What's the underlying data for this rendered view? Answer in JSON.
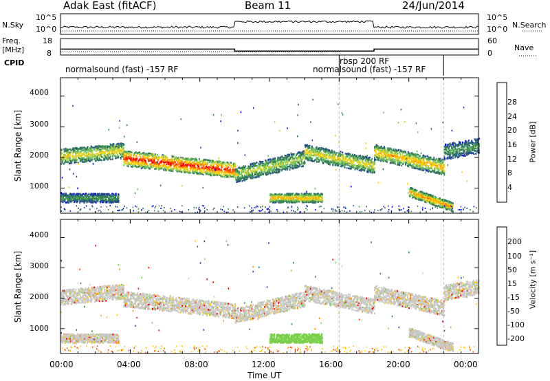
{
  "header": {
    "station": "Adak East (fitACF)",
    "beam": "Beam 11",
    "date": "24/Jun/2014"
  },
  "side_labels": {
    "nsky": "N.Sky",
    "nsearch": "N.Search",
    "freq_line1": "Freq.",
    "freq_line2": "[MHz]",
    "nave": "Nave",
    "cpid": "CPID"
  },
  "cpid_labels": {
    "first": "normalsound (fast) -157 RF",
    "rbsp": "rbsp 200 RF",
    "second": "normalsound (fast) -157 RF"
  },
  "noise_axis": {
    "left_ticks": [
      "10^5",
      "10^0"
    ],
    "right_ticks": [
      "10^5",
      "10^0"
    ]
  },
  "freq_axis": {
    "left_ticks": [
      "18",
      "8"
    ],
    "right_ticks": [
      "60",
      "0"
    ]
  },
  "x_axis": {
    "label": "Time UT",
    "ticks": [
      "00:00",
      "04:00",
      "08:00",
      "12:00",
      "16:00",
      "20:00",
      "00:00"
    ]
  },
  "power_panel": {
    "ylabel": "Slant Range [km]",
    "yticks": [
      "4000",
      "3000",
      "2000",
      "1000"
    ],
    "colorbar_label": "Power [dB]",
    "colorbar_ticks": [
      "28",
      "24",
      "20",
      "16",
      "12",
      "8",
      "4"
    ],
    "colors": [
      "#0000ff",
      "#1e3fa0",
      "#2f6e6e",
      "#3a8a4a",
      "#6cc060",
      "#d2d232",
      "#ffd000",
      "#ff9a00",
      "#ff5a00",
      "#ff0000"
    ]
  },
  "velocity_panel": {
    "ylabel": "Slant Range [km]",
    "yticks": [
      "4000",
      "3000",
      "2000",
      "1000"
    ],
    "colorbar_label": "Velocity [m s⁻¹]",
    "colorbar_ticks": [
      "200",
      "100",
      "50",
      "15",
      "-15",
      "-50",
      "-100",
      "-200"
    ],
    "colors": [
      "#1c3fa8",
      "#2f6f6f",
      "#2f8f3f",
      "#7ad04a",
      "#c8c8c8",
      "#ffc800",
      "#ff9000",
      "#ff4a00",
      "#ff0000"
    ]
  },
  "chart_data": {
    "type": "heatmap",
    "x_range_hours": [
      0,
      24
    ],
    "y_range_km": [
      180,
      4600
    ],
    "frequency_mhz": [
      {
        "start": 0.0,
        "end": 10.0,
        "value": 11.6
      },
      {
        "start": 10.0,
        "end": 18.0,
        "value": 10.4
      },
      {
        "start": 18.0,
        "end": 24.0,
        "value": 11.6
      }
    ],
    "nave": [
      {
        "start": 0.0,
        "end": 16.0,
        "value": 12
      },
      {
        "start": 16.0,
        "end": 18.0,
        "value": 14
      },
      {
        "start": 18.0,
        "end": 24.0,
        "value": 22
      }
    ],
    "power_range_db": [
      0,
      30
    ],
    "velocity_range_ms": [
      -250,
      250
    ],
    "echo_bands": [
      {
        "t0": 0.0,
        "t1": 3.6,
        "r0": 2050,
        "r1": 2250,
        "power": 16
      },
      {
        "t0": 3.6,
        "t1": 10.0,
        "r0": 2000,
        "r1": 1600,
        "power": 24
      },
      {
        "t0": 10.0,
        "t1": 14.0,
        "r0": 1450,
        "r1": 2000,
        "power": 14
      },
      {
        "t0": 14.0,
        "t1": 18.0,
        "r0": 2200,
        "r1": 1750,
        "power": 16
      },
      {
        "t0": 18.0,
        "t1": 22.0,
        "r0": 2200,
        "r1": 1700,
        "power": 18
      },
      {
        "t0": 22.0,
        "t1": 24.0,
        "r0": 2200,
        "r1": 2400,
        "power": 10
      },
      {
        "t0": 0.0,
        "t1": 3.3,
        "r0": 700,
        "r1": 700,
        "power": 10
      },
      {
        "t0": 12.0,
        "t1": 15.0,
        "r0": 700,
        "r1": 700,
        "power": 18
      },
      {
        "t0": 20.0,
        "t1": 22.5,
        "r0": 900,
        "r1": 400,
        "power": 20
      }
    ]
  }
}
